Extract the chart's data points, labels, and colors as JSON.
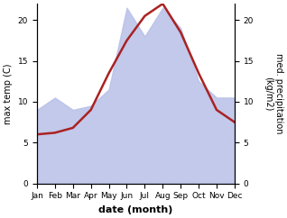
{
  "months": [
    "Jan",
    "Feb",
    "Mar",
    "Apr",
    "May",
    "Jun",
    "Jul",
    "Aug",
    "Sep",
    "Oct",
    "Nov",
    "Dec"
  ],
  "month_positions": [
    1,
    2,
    3,
    4,
    5,
    6,
    7,
    8,
    9,
    10,
    11,
    12
  ],
  "temperature": [
    6.0,
    6.2,
    6.8,
    9.0,
    13.5,
    17.5,
    20.5,
    22.0,
    18.5,
    13.5,
    9.0,
    7.5
  ],
  "precipitation": [
    9.0,
    10.5,
    9.0,
    9.5,
    11.5,
    21.5,
    18.0,
    21.5,
    19.0,
    12.5,
    10.5,
    10.5
  ],
  "temp_color": "#aa2222",
  "precip_fill_color": "#b8c0e8",
  "ylabel_left": "max temp (C)",
  "ylabel_right": "med. precipitation\n(kg/m2)",
  "xlabel": "date (month)",
  "ylim_left": [
    0,
    22
  ],
  "ylim_right": [
    0,
    22
  ],
  "yticks_left": [
    0,
    5,
    10,
    15,
    20
  ],
  "yticks_right": [
    0,
    5,
    10,
    15,
    20
  ],
  "background_color": "#ffffff",
  "line_width": 1.8,
  "ylabel_left_fontsize": 7,
  "ylabel_right_fontsize": 7,
  "xlabel_fontsize": 8,
  "tick_fontsize": 6.5
}
